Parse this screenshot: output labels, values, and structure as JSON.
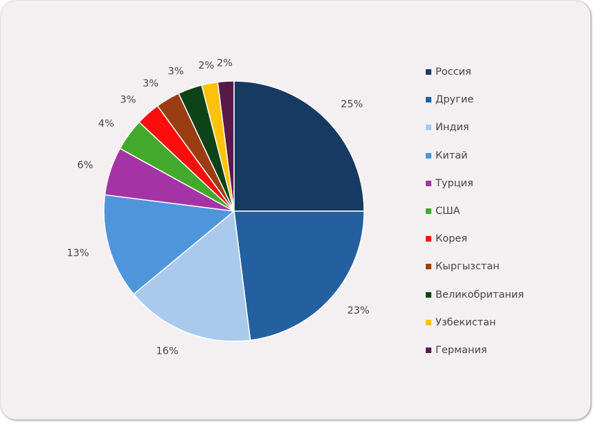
{
  "chart_data": {
    "type": "pie",
    "categories": [
      "Россия",
      "Другие",
      "Индия",
      "Китай",
      "Турция",
      "США",
      "Корея",
      "Кыргызстан",
      "Великобритания",
      "Узбекистан",
      "Германия"
    ],
    "values": [
      25,
      23,
      16,
      13,
      6,
      4,
      3,
      3,
      3,
      2,
      2
    ],
    "data_labels": [
      "25%",
      "23%",
      "16%",
      "13%",
      "6%",
      "4%",
      "3%",
      "3%",
      "3%",
      "2%",
      "2%"
    ],
    "colors": [
      "#173a63",
      "#2460a0",
      "#a9caec",
      "#4f95dc",
      "#a434a6",
      "#43a92c",
      "#ff0c0c",
      "#9b3d13",
      "#0e4317",
      "#ffc20a",
      "#5a1848"
    ],
    "start_angle_deg": 0,
    "direction": "clockwise",
    "legend_position": "right",
    "title": ""
  }
}
